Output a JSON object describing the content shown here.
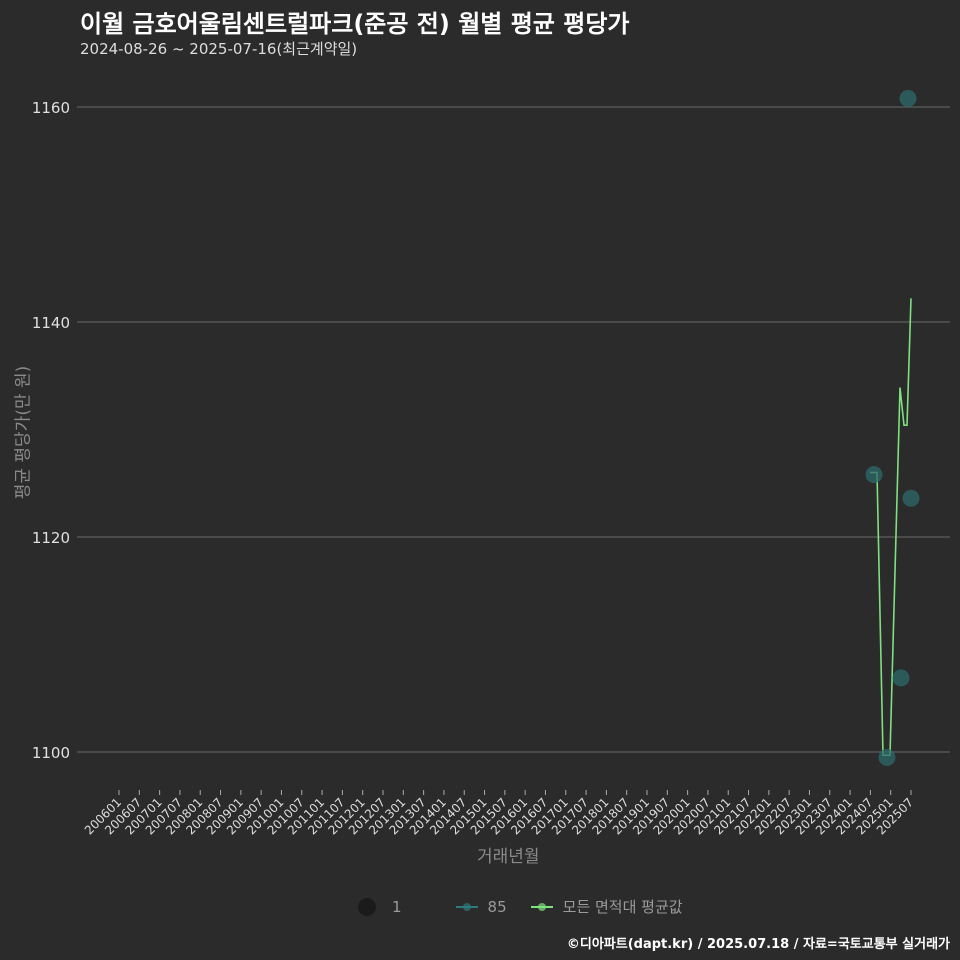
{
  "title": "이월 금호어울림센트럴파크(준공 전) 월별 평균 평당가",
  "subtitle": "2024-08-26 ~ 2025-07-16(최근계약일)",
  "footer": "©디아파트(dapt.kr) / 2025.07.18 / 자료=국토교통부 실거래가",
  "colors": {
    "background": "#2b2b2b",
    "series_85": "#2e6b6b",
    "series_avg": "#7fe07f",
    "grid": "#5a5a5a"
  },
  "legend": {
    "size_label": "1",
    "series_85": "85",
    "series_avg": "모든 면적대 평균값"
  },
  "chart_data": {
    "type": "line",
    "title": "이월 금호어울림센트럴파크(준공 전) 월별 평균 평당가",
    "subtitle": "2024-08-26 ~ 2025-07-16(최근계약일)",
    "xlabel": "거래년월",
    "ylabel": "평균 평당가(만 원)",
    "ylim": [
      1097,
      1162
    ],
    "yticks": [
      1100,
      1120,
      1140,
      1160
    ],
    "x_tick_labels": [
      "200601",
      "200607",
      "200701",
      "200707",
      "200801",
      "200807",
      "200901",
      "200907",
      "201001",
      "201007",
      "201101",
      "201107",
      "201201",
      "201207",
      "201301",
      "201307",
      "201401",
      "201407",
      "201501",
      "201507",
      "201601",
      "201607",
      "201701",
      "201707",
      "201801",
      "201807",
      "201901",
      "201907",
      "202001",
      "202007",
      "202101",
      "202107",
      "202201",
      "202207",
      "202301",
      "202307",
      "202401",
      "202407",
      "202501",
      "202507"
    ],
    "grid": true,
    "legend_position": "bottom",
    "series": [
      {
        "name": "85",
        "kind": "scatter",
        "x": [
          "202408",
          "202412",
          "202504",
          "202506",
          "202507"
        ],
        "values": [
          1125.8,
          1099.5,
          1106.9,
          1160.8,
          1123.6
        ]
      },
      {
        "name": "모든 면적대 평균값",
        "kind": "line",
        "x": [
          "202407",
          "202409",
          "202411",
          "202413",
          "202504",
          "202505",
          "202506",
          "202507"
        ],
        "values": [
          1126.0,
          1126.0,
          1099.7,
          1099.7,
          1133.9,
          1130.4,
          1130.4,
          1142.2
        ]
      }
    ]
  },
  "axis": {
    "y_title": "평균 평당가(만 원)",
    "x_title": "거래년월"
  }
}
